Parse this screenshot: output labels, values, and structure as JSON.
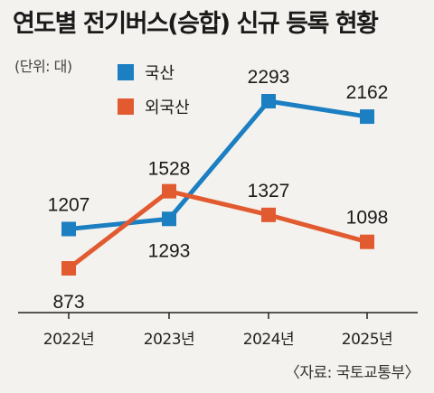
{
  "title": "연도별 전기버스(승합) 신규 등록 현황",
  "unit_note": "(단위: 대)",
  "source": "〈자료: 국토교통부〉",
  "colors": {
    "domestic": "#1b7fc2",
    "imported": "#e15a30",
    "axis": "#222222",
    "background": "#f4f2ee"
  },
  "chart_data": {
    "type": "line",
    "title": "연도별 전기버스(승합) 신규 등록 현황",
    "x": [
      "2022년",
      "2023년",
      "2024년",
      "2025년"
    ],
    "series": [
      {
        "name": "국산",
        "values": [
          1207,
          1293,
          2293,
          2162
        ],
        "color": "#1b7fc2"
      },
      {
        "name": "외국산",
        "values": [
          873,
          1528,
          1327,
          1098
        ],
        "color": "#e15a30"
      }
    ],
    "data_labels": {
      "국산": [
        "1207",
        "1293",
        "2293",
        "2162"
      ],
      "외국산": [
        "873",
        "1528",
        "1327",
        "1098"
      ]
    },
    "legend": [
      "국산",
      "외국산"
    ],
    "legend_position": "top-left",
    "grid": false
  }
}
